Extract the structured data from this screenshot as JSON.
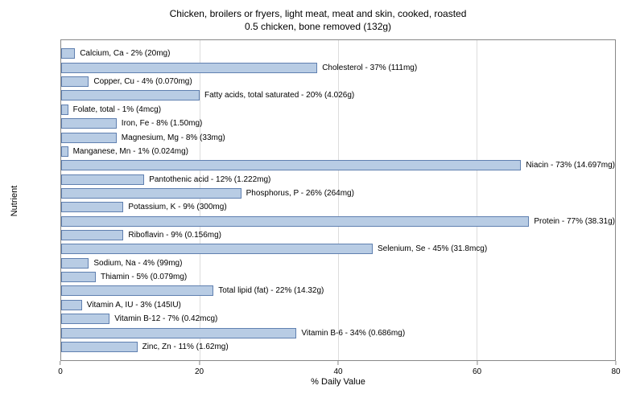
{
  "chart": {
    "type": "bar-horizontal",
    "title_line1": "Chicken, broilers or fryers, light meat, meat and skin, cooked, roasted",
    "title_line2": "0.5 chicken, bone removed (132g)",
    "title_fontsize": 12,
    "y_label": "Nutrient",
    "x_label": "% Daily Value",
    "label_fontsize": 11,
    "bar_label_fontsize": 10,
    "xlim": [
      0,
      80
    ],
    "x_ticks": [
      0,
      20,
      40,
      60,
      80
    ],
    "background_color": "#ffffff",
    "grid_color": "#dddddd",
    "bar_fill": "#b8cce4",
    "bar_border": "#6080b0",
    "axis_border": "#888888",
    "rows": [
      {
        "label": "Calcium, Ca - 2% (20mg)",
        "value": 2
      },
      {
        "label": "Cholesterol - 37% (111mg)",
        "value": 37
      },
      {
        "label": "Copper, Cu - 4% (0.070mg)",
        "value": 4
      },
      {
        "label": "Fatty acids, total saturated - 20% (4.026g)",
        "value": 20
      },
      {
        "label": "Folate, total - 1% (4mcg)",
        "value": 1
      },
      {
        "label": "Iron, Fe - 8% (1.50mg)",
        "value": 8
      },
      {
        "label": "Magnesium, Mg - 8% (33mg)",
        "value": 8
      },
      {
        "label": "Manganese, Mn - 1% (0.024mg)",
        "value": 1
      },
      {
        "label": "Niacin - 73% (14.697mg)",
        "value": 73
      },
      {
        "label": "Pantothenic acid - 12% (1.222mg)",
        "value": 12
      },
      {
        "label": "Phosphorus, P - 26% (264mg)",
        "value": 26
      },
      {
        "label": "Potassium, K - 9% (300mg)",
        "value": 9
      },
      {
        "label": "Protein - 77% (38.31g)",
        "value": 77
      },
      {
        "label": "Riboflavin - 9% (0.156mg)",
        "value": 9
      },
      {
        "label": "Selenium, Se - 45% (31.8mcg)",
        "value": 45
      },
      {
        "label": "Sodium, Na - 4% (99mg)",
        "value": 4
      },
      {
        "label": "Thiamin - 5% (0.079mg)",
        "value": 5
      },
      {
        "label": "Total lipid (fat) - 22% (14.32g)",
        "value": 22
      },
      {
        "label": "Vitamin A, IU - 3% (145IU)",
        "value": 3
      },
      {
        "label": "Vitamin B-12 - 7% (0.42mcg)",
        "value": 7
      },
      {
        "label": "Vitamin B-6 - 34% (0.686mg)",
        "value": 34
      },
      {
        "label": "Zinc, Zn - 11% (1.62mg)",
        "value": 11
      }
    ]
  }
}
